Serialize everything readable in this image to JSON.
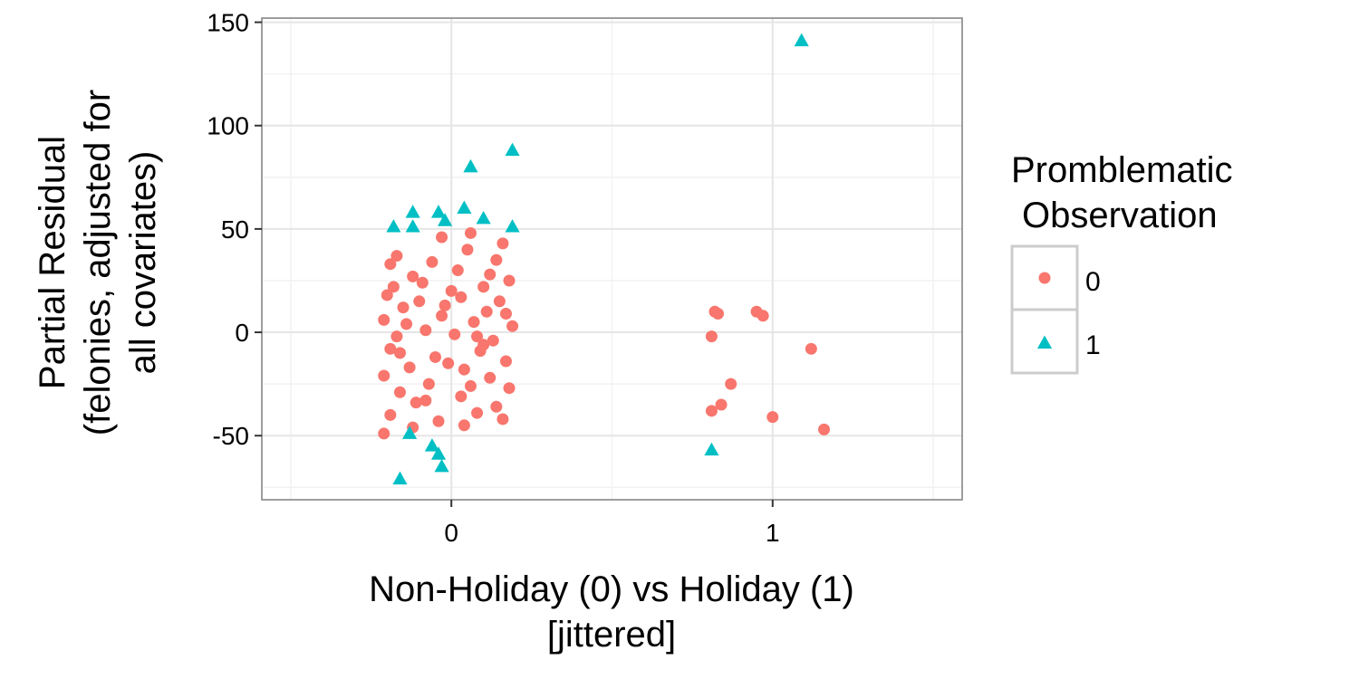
{
  "chart_data": {
    "type": "scatter",
    "title": "",
    "xlabel": [
      "Non-Holiday (0) vs Holiday (1)",
      "[jittered]"
    ],
    "ylabel": [
      "Partial Residual",
      "(felonies, adjusted for",
      "all covariates)"
    ],
    "xlim": [
      -0.59,
      1.59
    ],
    "ylim": [
      -81,
      152
    ],
    "x_ticks": [
      0,
      1
    ],
    "x_tick_labels": [
      "0",
      "1"
    ],
    "y_ticks": [
      -50,
      0,
      50,
      100,
      150
    ],
    "y_tick_labels": [
      "-50",
      "0",
      "50",
      "100",
      "150"
    ],
    "grid": true,
    "legend": {
      "title": [
        "Promblematic",
        "Observation"
      ],
      "placement": "right",
      "entries": [
        {
          "label": "0",
          "shape": "circle",
          "color": "#F8766D"
        },
        {
          "label": "1",
          "shape": "triangle",
          "color": "#00BFC4"
        }
      ]
    },
    "series": [
      {
        "name": "0",
        "shape": "circle",
        "color": "#F8766D",
        "points": [
          [
            -0.03,
            46
          ],
          [
            0.06,
            48
          ],
          [
            0.16,
            43
          ],
          [
            -0.17,
            37
          ],
          [
            0.05,
            40
          ],
          [
            -0.19,
            33
          ],
          [
            -0.06,
            34
          ],
          [
            0.02,
            30
          ],
          [
            0.14,
            35
          ],
          [
            -0.12,
            27
          ],
          [
            0.18,
            25
          ],
          [
            -0.09,
            24
          ],
          [
            0.1,
            22
          ],
          [
            -0.2,
            18
          ],
          [
            0.03,
            17
          ],
          [
            0.15,
            15
          ],
          [
            -0.15,
            12
          ],
          [
            -0.02,
            13
          ],
          [
            0.11,
            10
          ],
          [
            -0.21,
            6
          ],
          [
            0.07,
            5
          ],
          [
            0.19,
            3
          ],
          [
            -0.08,
            1
          ],
          [
            -0.17,
            -2
          ],
          [
            0.01,
            -1
          ],
          [
            0.13,
            -4
          ],
          [
            -0.19,
            -8
          ],
          [
            0.09,
            -9
          ],
          [
            -0.05,
            -12
          ],
          [
            0.17,
            -14
          ],
          [
            -0.13,
            -17
          ],
          [
            0.04,
            -18
          ],
          [
            -0.21,
            -21
          ],
          [
            0.12,
            -22
          ],
          [
            -0.07,
            -25
          ],
          [
            0.18,
            -27
          ],
          [
            -0.16,
            -29
          ],
          [
            0.03,
            -31
          ],
          [
            -0.11,
            -34
          ],
          [
            0.14,
            -36
          ],
          [
            -0.19,
            -40
          ],
          [
            0.08,
            -39
          ],
          [
            -0.04,
            -43
          ],
          [
            0.16,
            -42
          ],
          [
            -0.12,
            -46
          ],
          [
            0.04,
            -45
          ],
          [
            -0.21,
            -49
          ],
          [
            -0.1,
            15
          ],
          [
            0.0,
            20
          ],
          [
            -0.14,
            4
          ],
          [
            0.08,
            -2
          ],
          [
            -0.03,
            8
          ],
          [
            0.12,
            28
          ],
          [
            -0.18,
            22
          ],
          [
            0.06,
            -26
          ],
          [
            -0.08,
            -33
          ],
          [
            0.17,
            9
          ],
          [
            -0.01,
            -15
          ],
          [
            0.1,
            -6
          ],
          [
            -0.16,
            -10
          ],
          [
            0.81,
            -2
          ],
          [
            0.82,
            10
          ],
          [
            0.83,
            9
          ],
          [
            0.95,
            10
          ],
          [
            0.97,
            8
          ],
          [
            1.12,
            -8
          ],
          [
            0.87,
            -25
          ],
          [
            0.84,
            -35
          ],
          [
            0.81,
            -38
          ],
          [
            1.0,
            -41
          ],
          [
            1.16,
            -47
          ]
        ]
      },
      {
        "name": "1",
        "shape": "triangle",
        "color": "#00BFC4",
        "points": [
          [
            1.09,
            141
          ],
          [
            0.19,
            88
          ],
          [
            0.06,
            80
          ],
          [
            -0.12,
            58
          ],
          [
            -0.04,
            58
          ],
          [
            0.04,
            60
          ],
          [
            -0.18,
            51
          ],
          [
            -0.12,
            51
          ],
          [
            -0.02,
            54
          ],
          [
            0.1,
            55
          ],
          [
            0.19,
            51
          ],
          [
            -0.13,
            -49
          ],
          [
            -0.06,
            -55
          ],
          [
            -0.04,
            -59
          ],
          [
            -0.03,
            -65
          ],
          [
            -0.16,
            -71
          ],
          [
            0.81,
            -57
          ]
        ]
      }
    ]
  }
}
